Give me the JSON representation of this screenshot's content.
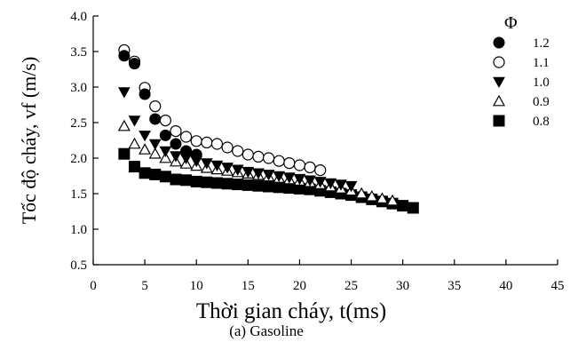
{
  "chart_data": {
    "type": "scatter",
    "xlabel": "Thời gian cháy, t(ms)",
    "ylabel": "Tốc độ cháy, vf (m/s)",
    "caption": "(a)  Gasoline",
    "legend_title": "Φ",
    "legend_position": "top-right",
    "grid": false,
    "xlim": [
      0,
      45
    ],
    "ylim": [
      0.5,
      4.0
    ],
    "x_ticks": [
      "0",
      "5",
      "10",
      "15",
      "20",
      "25",
      "30",
      "35",
      "40",
      "45"
    ],
    "y_ticks": [
      "0.5",
      "1.0",
      "1.5",
      "2.0",
      "2.5",
      "3.0",
      "3.5",
      "4.0"
    ],
    "series": [
      {
        "name": "1.2",
        "marker": "filled-circle",
        "color": "#000000",
        "x": [
          3,
          4,
          5,
          6,
          7,
          8,
          9,
          10
        ],
        "y": [
          3.44,
          3.33,
          2.9,
          2.55,
          2.32,
          2.2,
          2.1,
          2.05
        ]
      },
      {
        "name": "1.1",
        "marker": "open-circle",
        "color": "#000000",
        "x": [
          3,
          4,
          5,
          6,
          7,
          8,
          9,
          10,
          11,
          12,
          13,
          14,
          15,
          16,
          17,
          18,
          19,
          20,
          21,
          22
        ],
        "y": [
          3.52,
          3.36,
          2.99,
          2.73,
          2.53,
          2.38,
          2.3,
          2.24,
          2.22,
          2.2,
          2.15,
          2.1,
          2.05,
          2.02,
          2.0,
          1.96,
          1.93,
          1.9,
          1.87,
          1.83
        ]
      },
      {
        "name": "1.0",
        "marker": "filled-triangle-down",
        "color": "#000000",
        "x": [
          3,
          4,
          5,
          6,
          7,
          8,
          9,
          10,
          11,
          12,
          13,
          14,
          15,
          16,
          17,
          18,
          19,
          20,
          21,
          22,
          23,
          24,
          25
        ],
        "y": [
          2.93,
          2.53,
          2.32,
          2.2,
          2.1,
          2.03,
          2.0,
          1.96,
          1.93,
          1.9,
          1.87,
          1.84,
          1.81,
          1.79,
          1.77,
          1.75,
          1.73,
          1.71,
          1.69,
          1.67,
          1.65,
          1.63,
          1.61
        ]
      },
      {
        "name": "0.9",
        "marker": "open-triangle-up",
        "color": "#000000",
        "x": [
          3,
          4,
          5,
          6,
          7,
          8,
          9,
          10,
          11,
          12,
          13,
          14,
          15,
          16,
          17,
          18,
          19,
          20,
          21,
          22,
          23,
          24,
          25,
          26,
          27,
          28,
          29
        ],
        "y": [
          2.45,
          2.2,
          2.12,
          2.06,
          2.0,
          1.95,
          1.92,
          1.89,
          1.86,
          1.84,
          1.82,
          1.8,
          1.78,
          1.76,
          1.74,
          1.72,
          1.7,
          1.68,
          1.66,
          1.63,
          1.6,
          1.57,
          1.54,
          1.5,
          1.46,
          1.43,
          1.4
        ]
      },
      {
        "name": "0.8",
        "marker": "filled-square",
        "color": "#000000",
        "x": [
          3,
          4,
          5,
          6,
          7,
          8,
          9,
          10,
          11,
          12,
          13,
          14,
          15,
          16,
          17,
          18,
          19,
          20,
          21,
          22,
          23,
          24,
          25,
          26,
          27,
          28,
          29,
          30,
          31
        ],
        "y": [
          2.06,
          1.88,
          1.79,
          1.77,
          1.74,
          1.7,
          1.69,
          1.67,
          1.66,
          1.65,
          1.64,
          1.63,
          1.62,
          1.61,
          1.6,
          1.59,
          1.58,
          1.57,
          1.56,
          1.54,
          1.52,
          1.5,
          1.48,
          1.45,
          1.42,
          1.39,
          1.36,
          1.33,
          1.3
        ]
      }
    ]
  }
}
